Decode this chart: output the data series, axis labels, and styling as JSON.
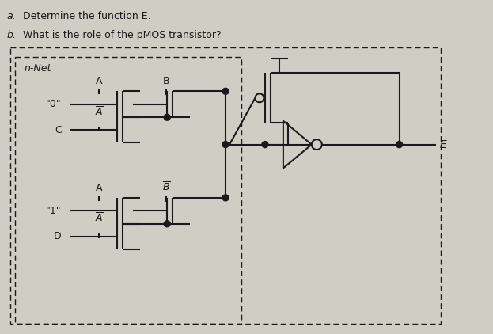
{
  "bg_color": "#d0cdc5",
  "line_color": "#1a1a1a",
  "text_color": "#1a1a1a",
  "fig_width": 6.23,
  "fig_height": 4.22,
  "label_a": "a.",
  "label_b": "b.",
  "text_a": "Determine the function E.",
  "text_b": "What is the role of the pMOS transistor?",
  "nnet_label": "n-Net"
}
